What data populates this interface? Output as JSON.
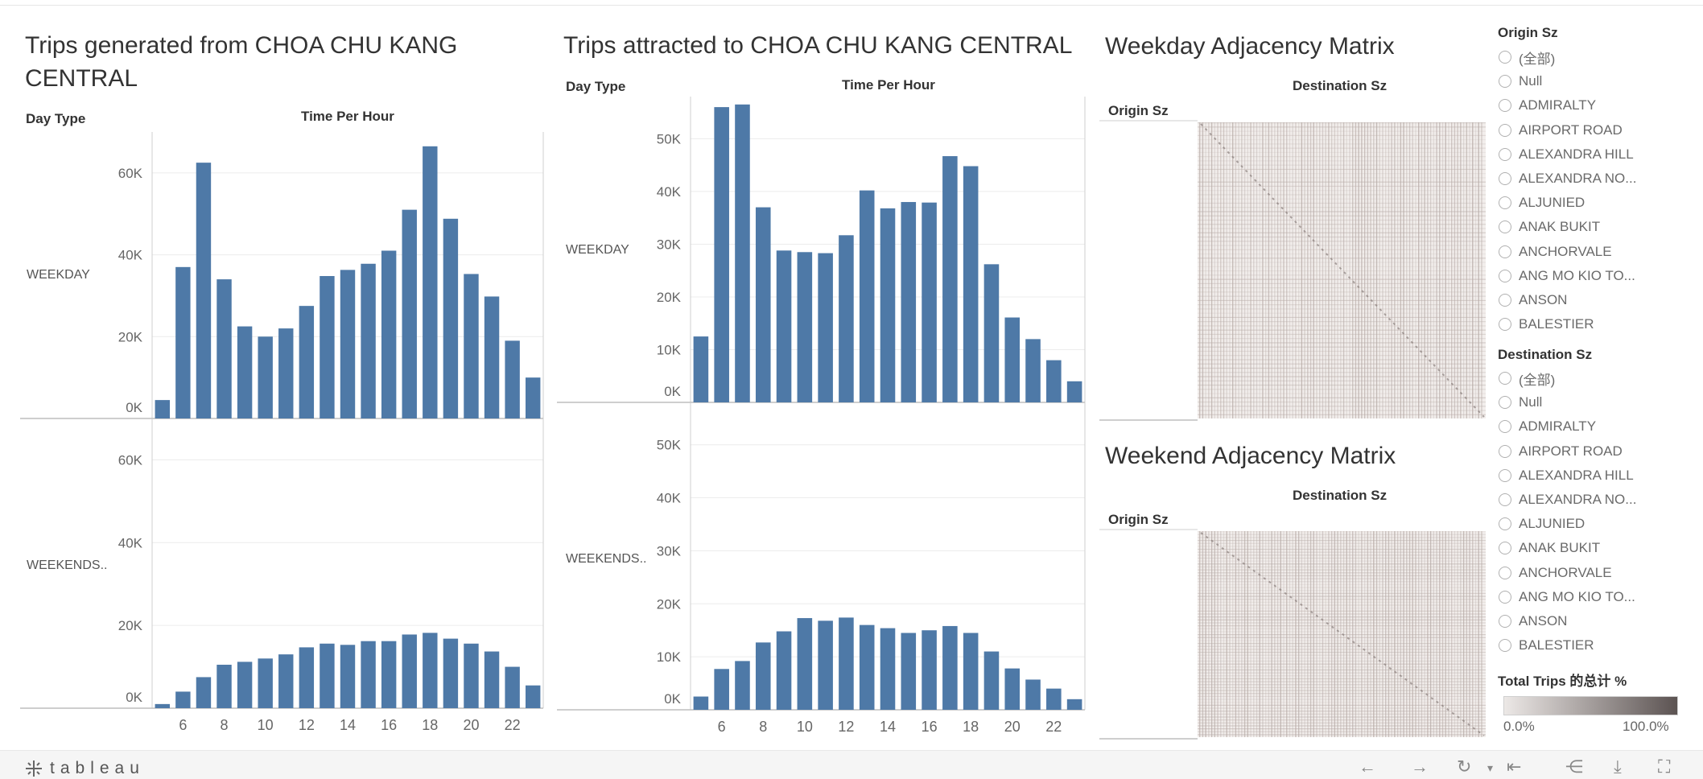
{
  "colors": {
    "bar": "#4e79a7",
    "grid": "#ececec",
    "axis": "#cfcfcf",
    "matrix_bg": "#ffffff",
    "matrix_line": "#b8aca8",
    "legend_start": "#ece8e6",
    "legend_end": "#5c5352"
  },
  "panels": {
    "generated": {
      "title_line1": "Trips generated from CHOA CHU KANG",
      "title_line2": "CENTRAL",
      "day_type_label": "Day Type",
      "time_label": "Time Per Hour",
      "weekday_label": "WEEKDAY",
      "weekend_label": "WEEKENDS.."
    },
    "attracted": {
      "title": "Trips attracted to CHOA CHU KANG CENTRAL",
      "day_type_label": "Day Type",
      "time_label": "Time Per Hour",
      "weekday_label": "WEEKDAY",
      "weekend_label": "WEEKENDS.."
    },
    "weekday_matrix": {
      "title": "Weekday Adjacency Matrix",
      "dest_label": "Destination Sz",
      "origin_label": "Origin Sz"
    },
    "weekend_matrix": {
      "title": "Weekend Adjacency Matrix",
      "dest_label": "Destination Sz",
      "origin_label": "Origin Sz"
    }
  },
  "filters": {
    "origin": {
      "label": "Origin Sz",
      "items": [
        "(全部)",
        "Null",
        "ADMIRALTY",
        "AIRPORT ROAD",
        "ALEXANDRA HILL",
        "ALEXANDRA NO...",
        "ALJUNIED",
        "ANAK BUKIT",
        "ANCHORVALE",
        "ANG MO KIO TO...",
        "ANSON",
        "BALESTIER"
      ]
    },
    "destination": {
      "label": "Destination Sz",
      "items": [
        "(全部)",
        "Null",
        "ADMIRALTY",
        "AIRPORT ROAD",
        "ALEXANDRA HILL",
        "ALEXANDRA NO...",
        "ALJUNIED",
        "ANAK BUKIT",
        "ANCHORVALE",
        "ANG MO KIO TO...",
        "ANSON",
        "BALESTIER"
      ]
    }
  },
  "legend": {
    "title": "Total Trips 的总计 %",
    "min_label": "0.0%",
    "max_label": "100.0%"
  },
  "footer": {
    "logo_text": "tableau"
  },
  "chart_data": [
    {
      "type": "bar",
      "title": "Trips generated from CHOA CHU KANG CENTRAL",
      "panel": "WEEKDAY",
      "xlabel": "Time Per Hour",
      "x": [
        5,
        6,
        7,
        8,
        9,
        10,
        11,
        12,
        13,
        14,
        15,
        16,
        17,
        18,
        19,
        20,
        21,
        22,
        23
      ],
      "x_ticks": [
        6,
        8,
        10,
        12,
        14,
        16,
        18,
        20,
        22
      ],
      "y_ticks": [
        "0K",
        "20K",
        "40K",
        "60K"
      ],
      "ylim": [
        0,
        70000
      ],
      "values": [
        4500,
        37000,
        62500,
        34000,
        22500,
        20000,
        22000,
        27500,
        34800,
        36300,
        37800,
        41000,
        51000,
        66500,
        48800,
        35300,
        29800,
        19000,
        10000
      ]
    },
    {
      "type": "bar",
      "title": "Trips generated from CHOA CHU KANG CENTRAL",
      "panel": "WEEKENDS..",
      "xlabel": "Time Per Hour",
      "x": [
        5,
        6,
        7,
        8,
        9,
        10,
        11,
        12,
        13,
        14,
        15,
        16,
        17,
        18,
        19,
        20,
        21,
        22,
        23
      ],
      "x_ticks": [
        6,
        8,
        10,
        12,
        14,
        16,
        18,
        20,
        22
      ],
      "y_ticks": [
        "0K",
        "20K",
        "40K",
        "60K"
      ],
      "ylim": [
        0,
        70000
      ],
      "values": [
        1000,
        4000,
        7500,
        10500,
        11200,
        12000,
        13000,
        14700,
        15600,
        15300,
        16200,
        16200,
        17800,
        18200,
        16800,
        15600,
        13700,
        10000,
        5500
      ]
    },
    {
      "type": "bar",
      "title": "Trips attracted to CHOA CHU KANG CENTRAL",
      "panel": "WEEKDAY",
      "xlabel": "Time Per Hour",
      "x": [
        5,
        6,
        7,
        8,
        9,
        10,
        11,
        12,
        13,
        14,
        15,
        16,
        17,
        18,
        19,
        20,
        21,
        22,
        23
      ],
      "x_ticks": [
        6,
        8,
        10,
        12,
        14,
        16,
        18,
        20,
        22
      ],
      "y_ticks": [
        "0K",
        "10K",
        "20K",
        "30K",
        "40K",
        "50K"
      ],
      "ylim": [
        0,
        58000
      ],
      "values": [
        12500,
        56000,
        56500,
        37000,
        28800,
        28500,
        28300,
        31700,
        40200,
        36800,
        38000,
        37900,
        46700,
        44800,
        26200,
        16100,
        12000,
        8000,
        4000
      ]
    },
    {
      "type": "bar",
      "title": "Trips attracted to CHOA CHU KANG CENTRAL",
      "panel": "WEEKENDS..",
      "xlabel": "Time Per Hour",
      "x": [
        5,
        6,
        7,
        8,
        9,
        10,
        11,
        12,
        13,
        14,
        15,
        16,
        17,
        18,
        19,
        20,
        21,
        22,
        23
      ],
      "x_ticks": [
        6,
        8,
        10,
        12,
        14,
        16,
        18,
        20,
        22
      ],
      "y_ticks": [
        "0K",
        "10K",
        "20K",
        "30K",
        "40K",
        "50K"
      ],
      "ylim": [
        0,
        58000
      ],
      "values": [
        2500,
        7700,
        9200,
        12700,
        14800,
        17300,
        16800,
        17400,
        16000,
        15400,
        14500,
        15000,
        15800,
        14500,
        11000,
        7800,
        5700,
        4000,
        2000
      ]
    }
  ]
}
